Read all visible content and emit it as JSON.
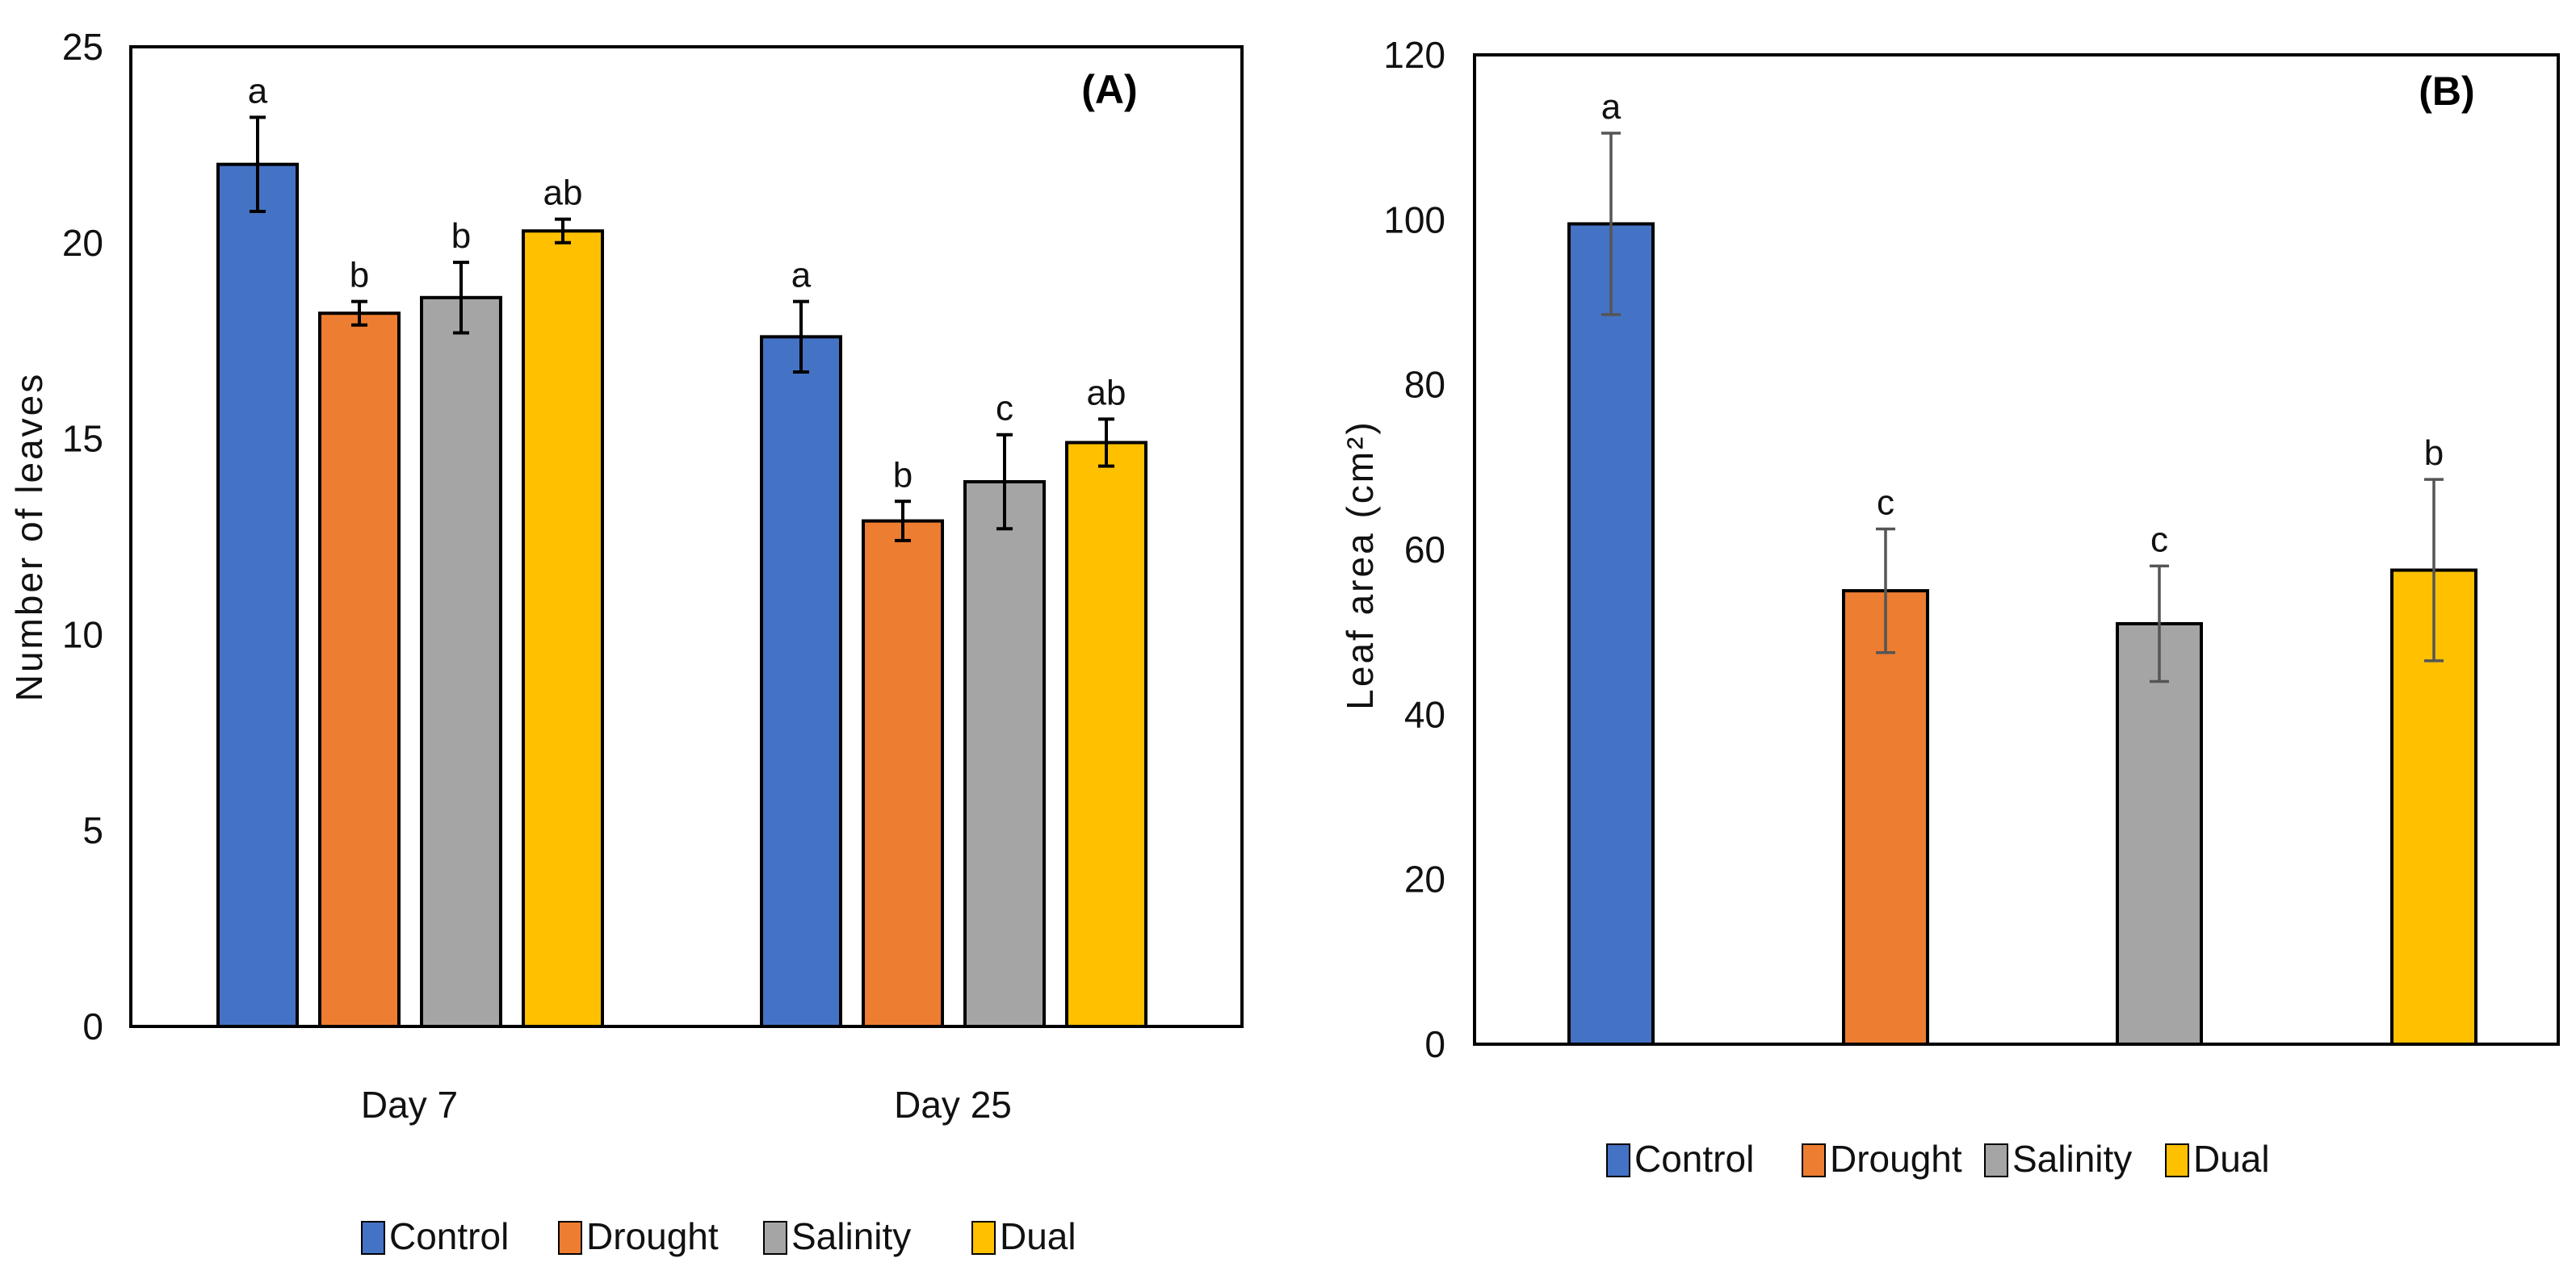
{
  "colors": {
    "Control": "#4472C4",
    "Drought": "#ED7D31",
    "Salinity": "#A5A5A5",
    "Dual": "#FFC000"
  },
  "chart_data": [
    {
      "type": "bar",
      "panel_label": "(A)",
      "ylabel": "Number  of leaves",
      "xlabel": "",
      "ylim": [
        0,
        25
      ],
      "yticks": [
        "0",
        "5",
        "10",
        "15",
        "20",
        "25"
      ],
      "categories": [
        "Day 7",
        "Day 25"
      ],
      "legend": [
        "Control",
        "Drought",
        "Salinity",
        "Dual"
      ],
      "series": [
        {
          "name": "Control",
          "values": [
            22.0,
            17.6
          ],
          "errors": [
            1.2,
            0.9
          ],
          "letters": [
            "a",
            "a"
          ]
        },
        {
          "name": "Drought",
          "values": [
            18.2,
            12.9
          ],
          "errors": [
            0.3,
            0.5
          ],
          "letters": [
            "b",
            "b"
          ]
        },
        {
          "name": "Salinity",
          "values": [
            18.6,
            13.9
          ],
          "errors": [
            0.9,
            1.2
          ],
          "letters": [
            "b",
            "c"
          ]
        },
        {
          "name": "Dual",
          "values": [
            20.3,
            14.9
          ],
          "errors": [
            0.3,
            0.6
          ],
          "letters": [
            "ab",
            "ab"
          ]
        }
      ]
    },
    {
      "type": "bar",
      "panel_label": "(B)",
      "ylabel": "Leaf area (cm²)",
      "xlabel": "",
      "ylim": [
        0,
        120
      ],
      "yticks": [
        "0",
        "20",
        "40",
        "60",
        "80",
        "100",
        "120"
      ],
      "categories": [
        "Control",
        "Drought",
        "Salinity",
        "Dual"
      ],
      "legend": [
        "Control",
        "Drought",
        "Salinity",
        "Dual"
      ],
      "values": [
        99.5,
        55.0,
        51.0,
        57.5
      ],
      "errors": [
        11.0,
        7.5,
        7.0,
        11.0
      ],
      "letters": [
        "a",
        "c",
        "c",
        "b"
      ]
    }
  ]
}
